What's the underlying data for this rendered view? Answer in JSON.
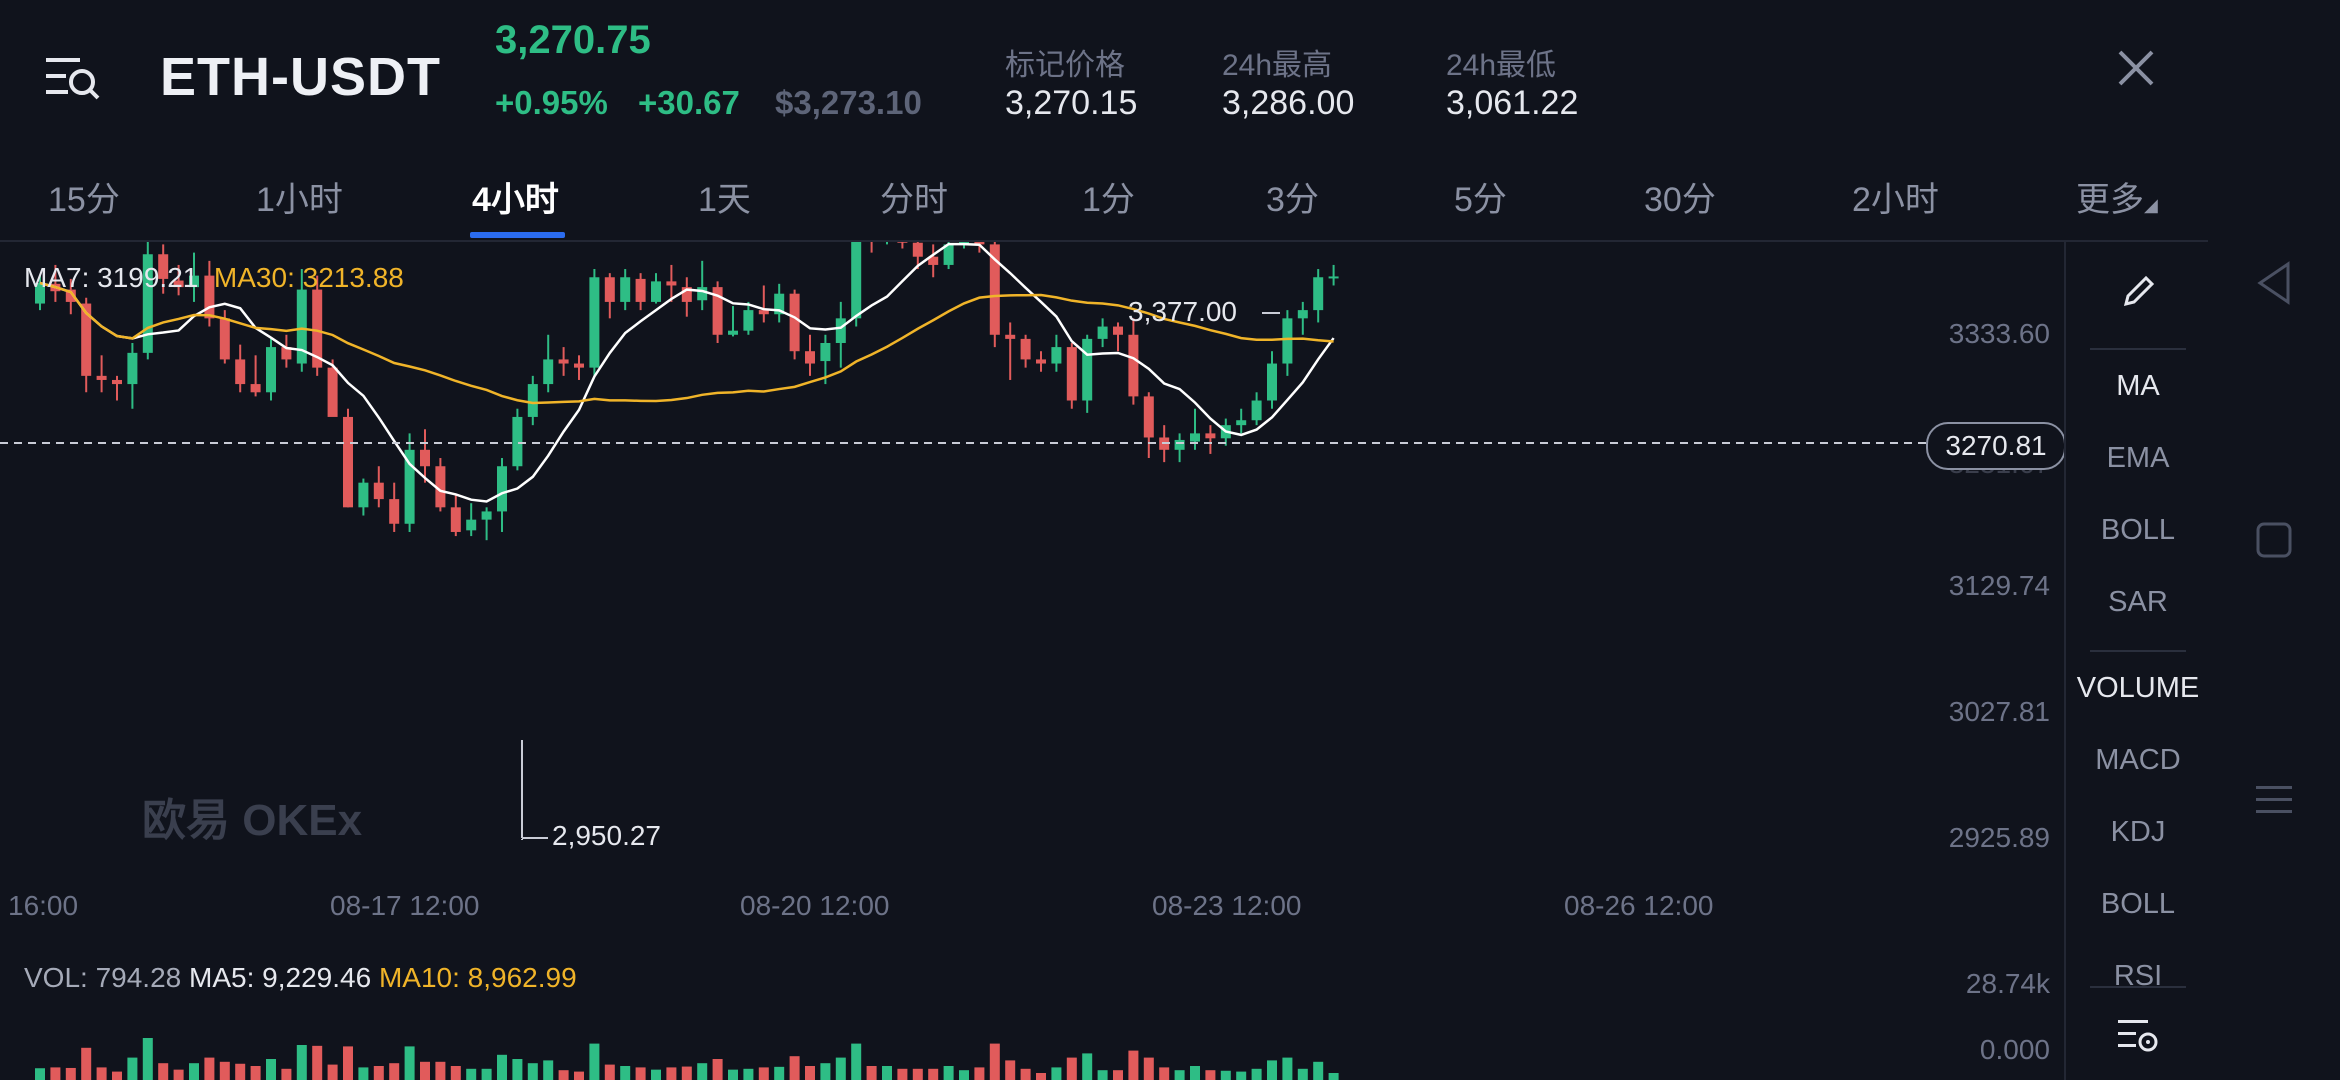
{
  "header": {
    "pair": "ETH-USDT",
    "last_price": "3,270.75",
    "change_pct": "+0.95%",
    "change_abs": "+30.67",
    "usd_price": "$3,273.10",
    "stats": [
      {
        "label": "标记价格",
        "value": "3,270.15"
      },
      {
        "label": "24h最高",
        "value": "3,286.00"
      },
      {
        "label": "24h最低",
        "value": "3,061.22"
      }
    ],
    "colors": {
      "up": "#2ebd85",
      "down": "#e15b5b",
      "accent": "#2b6cf0"
    }
  },
  "tabs": [
    "15分",
    "1小时",
    "4小时",
    "1天",
    "分时",
    "1分",
    "3分",
    "5分",
    "30分",
    "2小时",
    "更多"
  ],
  "active_tab": "4小时",
  "main_legend": {
    "ma7_label": "MA7:",
    "ma7_value": "3199.21",
    "ma30_label": "MA30:",
    "ma30_value": "3213.88"
  },
  "vol_legend": {
    "vol_label": "VOL:",
    "vol_value": "794.28",
    "ma5_label": "MA5:",
    "ma5_value": "9,229.46",
    "ma10_label": "MA10:",
    "ma10_value": "8,962.99"
  },
  "y_axis_labels": [
    "3333.60",
    "3231.67",
    "3129.74",
    "3027.81",
    "2925.89"
  ],
  "x_axis_labels": [
    "16:00",
    "08-17 12:00",
    "08-20 12:00",
    "08-23 12:00",
    "08-26 12:00"
  ],
  "annotations": {
    "high": "3,377.00",
    "low": "2,950.27",
    "current": "3270.81"
  },
  "volume_axis": {
    "top": "28.74k",
    "bottom": "0.000"
  },
  "watermark": "欧易 OKEx",
  "indicators": {
    "main": [
      "MA",
      "EMA",
      "BOLL",
      "SAR"
    ],
    "sub": [
      "VOLUME",
      "MACD",
      "KDJ",
      "BOLL",
      "RSI"
    ]
  },
  "chart_data": {
    "type": "candlestick",
    "interval": "4小时",
    "price_range": [
      2925.89,
      3377.0
    ],
    "candles_ohlc": [
      [
        3238,
        3272,
        3230,
        3263
      ],
      [
        3262,
        3285,
        3240,
        3253
      ],
      [
        3255,
        3268,
        3225,
        3240
      ],
      [
        3238,
        3245,
        3130,
        3150
      ],
      [
        3150,
        3175,
        3130,
        3145
      ],
      [
        3145,
        3150,
        3120,
        3140
      ],
      [
        3140,
        3190,
        3110,
        3178
      ],
      [
        3178,
        3320,
        3170,
        3298
      ],
      [
        3298,
        3310,
        3250,
        3268
      ],
      [
        3266,
        3285,
        3248,
        3258
      ],
      [
        3258,
        3300,
        3240,
        3272
      ],
      [
        3272,
        3290,
        3210,
        3220
      ],
      [
        3220,
        3230,
        3165,
        3170
      ],
      [
        3170,
        3188,
        3130,
        3140
      ],
      [
        3140,
        3175,
        3125,
        3130
      ],
      [
        3130,
        3195,
        3120,
        3185
      ],
      [
        3185,
        3200,
        3160,
        3170
      ],
      [
        3165,
        3280,
        3155,
        3255
      ],
      [
        3255,
        3272,
        3150,
        3160
      ],
      [
        3160,
        3170,
        3115,
        3100
      ],
      [
        3100,
        3110,
        2990,
        2990
      ],
      [
        2990,
        3025,
        2980,
        3020
      ],
      [
        3020,
        3040,
        2990,
        3000
      ],
      [
        3000,
        3020,
        2960,
        2970
      ],
      [
        2970,
        3080,
        2960,
        3060
      ],
      [
        3060,
        3085,
        3020,
        3040
      ],
      [
        3040,
        3050,
        2985,
        2990
      ],
      [
        2990,
        3005,
        2955,
        2960
      ],
      [
        2962,
        2995,
        2955,
        2975
      ],
      [
        2975,
        2990,
        2950,
        2985
      ],
      [
        2985,
        3050,
        2960,
        3040
      ],
      [
        3040,
        3110,
        3035,
        3100
      ],
      [
        3100,
        3150,
        3090,
        3140
      ],
      [
        3140,
        3200,
        3130,
        3170
      ],
      [
        3170,
        3185,
        3150,
        3165
      ],
      [
        3165,
        3175,
        3145,
        3160
      ],
      [
        3160,
        3280,
        3150,
        3270
      ],
      [
        3270,
        3275,
        3220,
        3240
      ],
      [
        3240,
        3280,
        3230,
        3270
      ],
      [
        3268,
        3275,
        3230,
        3240
      ],
      [
        3240,
        3275,
        3238,
        3265
      ],
      [
        3265,
        3285,
        3240,
        3260
      ],
      [
        3258,
        3270,
        3222,
        3240
      ],
      [
        3242,
        3290,
        3230,
        3258
      ],
      [
        3258,
        3265,
        3190,
        3200
      ],
      [
        3200,
        3235,
        3198,
        3205
      ],
      [
        3205,
        3240,
        3200,
        3230
      ],
      [
        3230,
        3260,
        3215,
        3225
      ],
      [
        3225,
        3262,
        3215,
        3250
      ],
      [
        3250,
        3255,
        3170,
        3180
      ],
      [
        3180,
        3200,
        3150,
        3165
      ],
      [
        3168,
        3200,
        3140,
        3190
      ],
      [
        3190,
        3240,
        3160,
        3220
      ],
      [
        3220,
        3340,
        3210,
        3330
      ],
      [
        3330,
        3350,
        3300,
        3315
      ],
      [
        3315,
        3360,
        3310,
        3325
      ],
      [
        3325,
        3345,
        3305,
        3312
      ],
      [
        3312,
        3320,
        3280,
        3295
      ],
      [
        3295,
        3310,
        3270,
        3285
      ],
      [
        3285,
        3330,
        3280,
        3310
      ],
      [
        3310,
        3340,
        3305,
        3330
      ],
      [
        3330,
        3345,
        3300,
        3310
      ],
      [
        3310,
        3315,
        3185,
        3200
      ],
      [
        3200,
        3215,
        3145,
        3195
      ],
      [
        3195,
        3200,
        3160,
        3170
      ],
      [
        3170,
        3180,
        3155,
        3165
      ],
      [
        3165,
        3200,
        3155,
        3185
      ],
      [
        3185,
        3190,
        3110,
        3120
      ],
      [
        3120,
        3200,
        3105,
        3195
      ],
      [
        3195,
        3220,
        3185,
        3210
      ],
      [
        3210,
        3215,
        3180,
        3200
      ],
      [
        3200,
        3220,
        3115,
        3125
      ],
      [
        3125,
        3130,
        3050,
        3075
      ],
      [
        3075,
        3090,
        3045,
        3060
      ],
      [
        3060,
        3080,
        3045,
        3072
      ],
      [
        3070,
        3110,
        3060,
        3080
      ],
      [
        3080,
        3090,
        3055,
        3074
      ],
      [
        3074,
        3098,
        3065,
        3090
      ],
      [
        3090,
        3110,
        3080,
        3096
      ],
      [
        3096,
        3130,
        3090,
        3120
      ],
      [
        3120,
        3180,
        3110,
        3165
      ],
      [
        3165,
        3230,
        3150,
        3220
      ],
      [
        3220,
        3240,
        3200,
        3230
      ],
      [
        3230,
        3280,
        3215,
        3270
      ],
      [
        3270,
        3285,
        3260,
        3271
      ]
    ],
    "volume_range": [
      0,
      28740
    ]
  }
}
